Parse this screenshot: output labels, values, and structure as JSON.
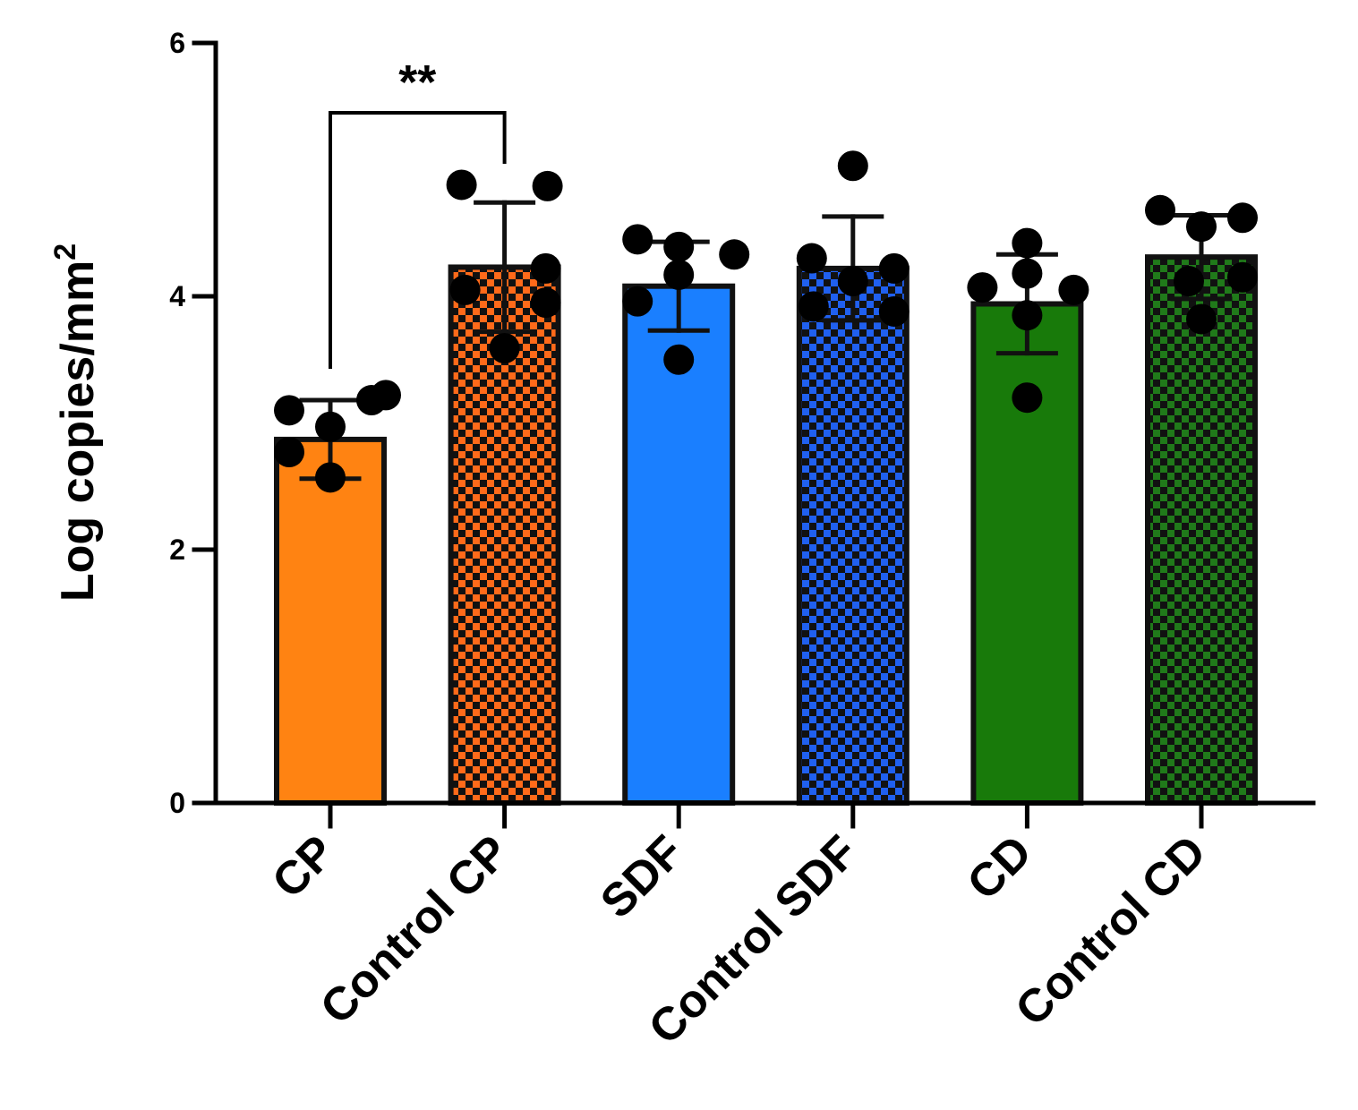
{
  "chart_data": {
    "type": "bar",
    "title": "",
    "xlabel": "",
    "ylabel": "Log copies/mm",
    "ylabel_superscript": "2",
    "ylim": [
      0,
      6
    ],
    "yticks": [
      "0",
      "2",
      "4",
      "6"
    ],
    "yticks_values": [
      0,
      2,
      4,
      6
    ],
    "categories": [
      "CP",
      "Control CP",
      "SDF",
      "Control SDF",
      "CD",
      "Control CD"
    ],
    "values": [
      2.87,
      4.23,
      4.08,
      4.22,
      3.94,
      4.31
    ],
    "errors": [
      0.31,
      0.51,
      0.35,
      0.41,
      0.39,
      0.33
    ],
    "colors": [
      "#ff8312",
      "#ff6a1a",
      "#1a7fff",
      "#2060f0",
      "#187a0a",
      "#207a1a"
    ],
    "patterns": [
      "solid",
      "checker",
      "solid",
      "checker",
      "solid",
      "checker"
    ],
    "points": [
      [
        3.1,
        3.18,
        3.22,
        2.97,
        2.77,
        2.57
      ],
      [
        4.88,
        4.87,
        4.22,
        4.05,
        3.95,
        3.59
      ],
      [
        4.45,
        4.39,
        4.33,
        4.17,
        3.96,
        3.5
      ],
      [
        5.03,
        4.3,
        4.22,
        4.12,
        3.92,
        3.88
      ],
      [
        4.42,
        4.18,
        4.07,
        4.05,
        3.85,
        3.2
      ],
      [
        4.68,
        4.62,
        4.55,
        4.15,
        4.12,
        3.82
      ]
    ],
    "significance": {
      "from": 0,
      "to": 1,
      "label": "**"
    }
  }
}
